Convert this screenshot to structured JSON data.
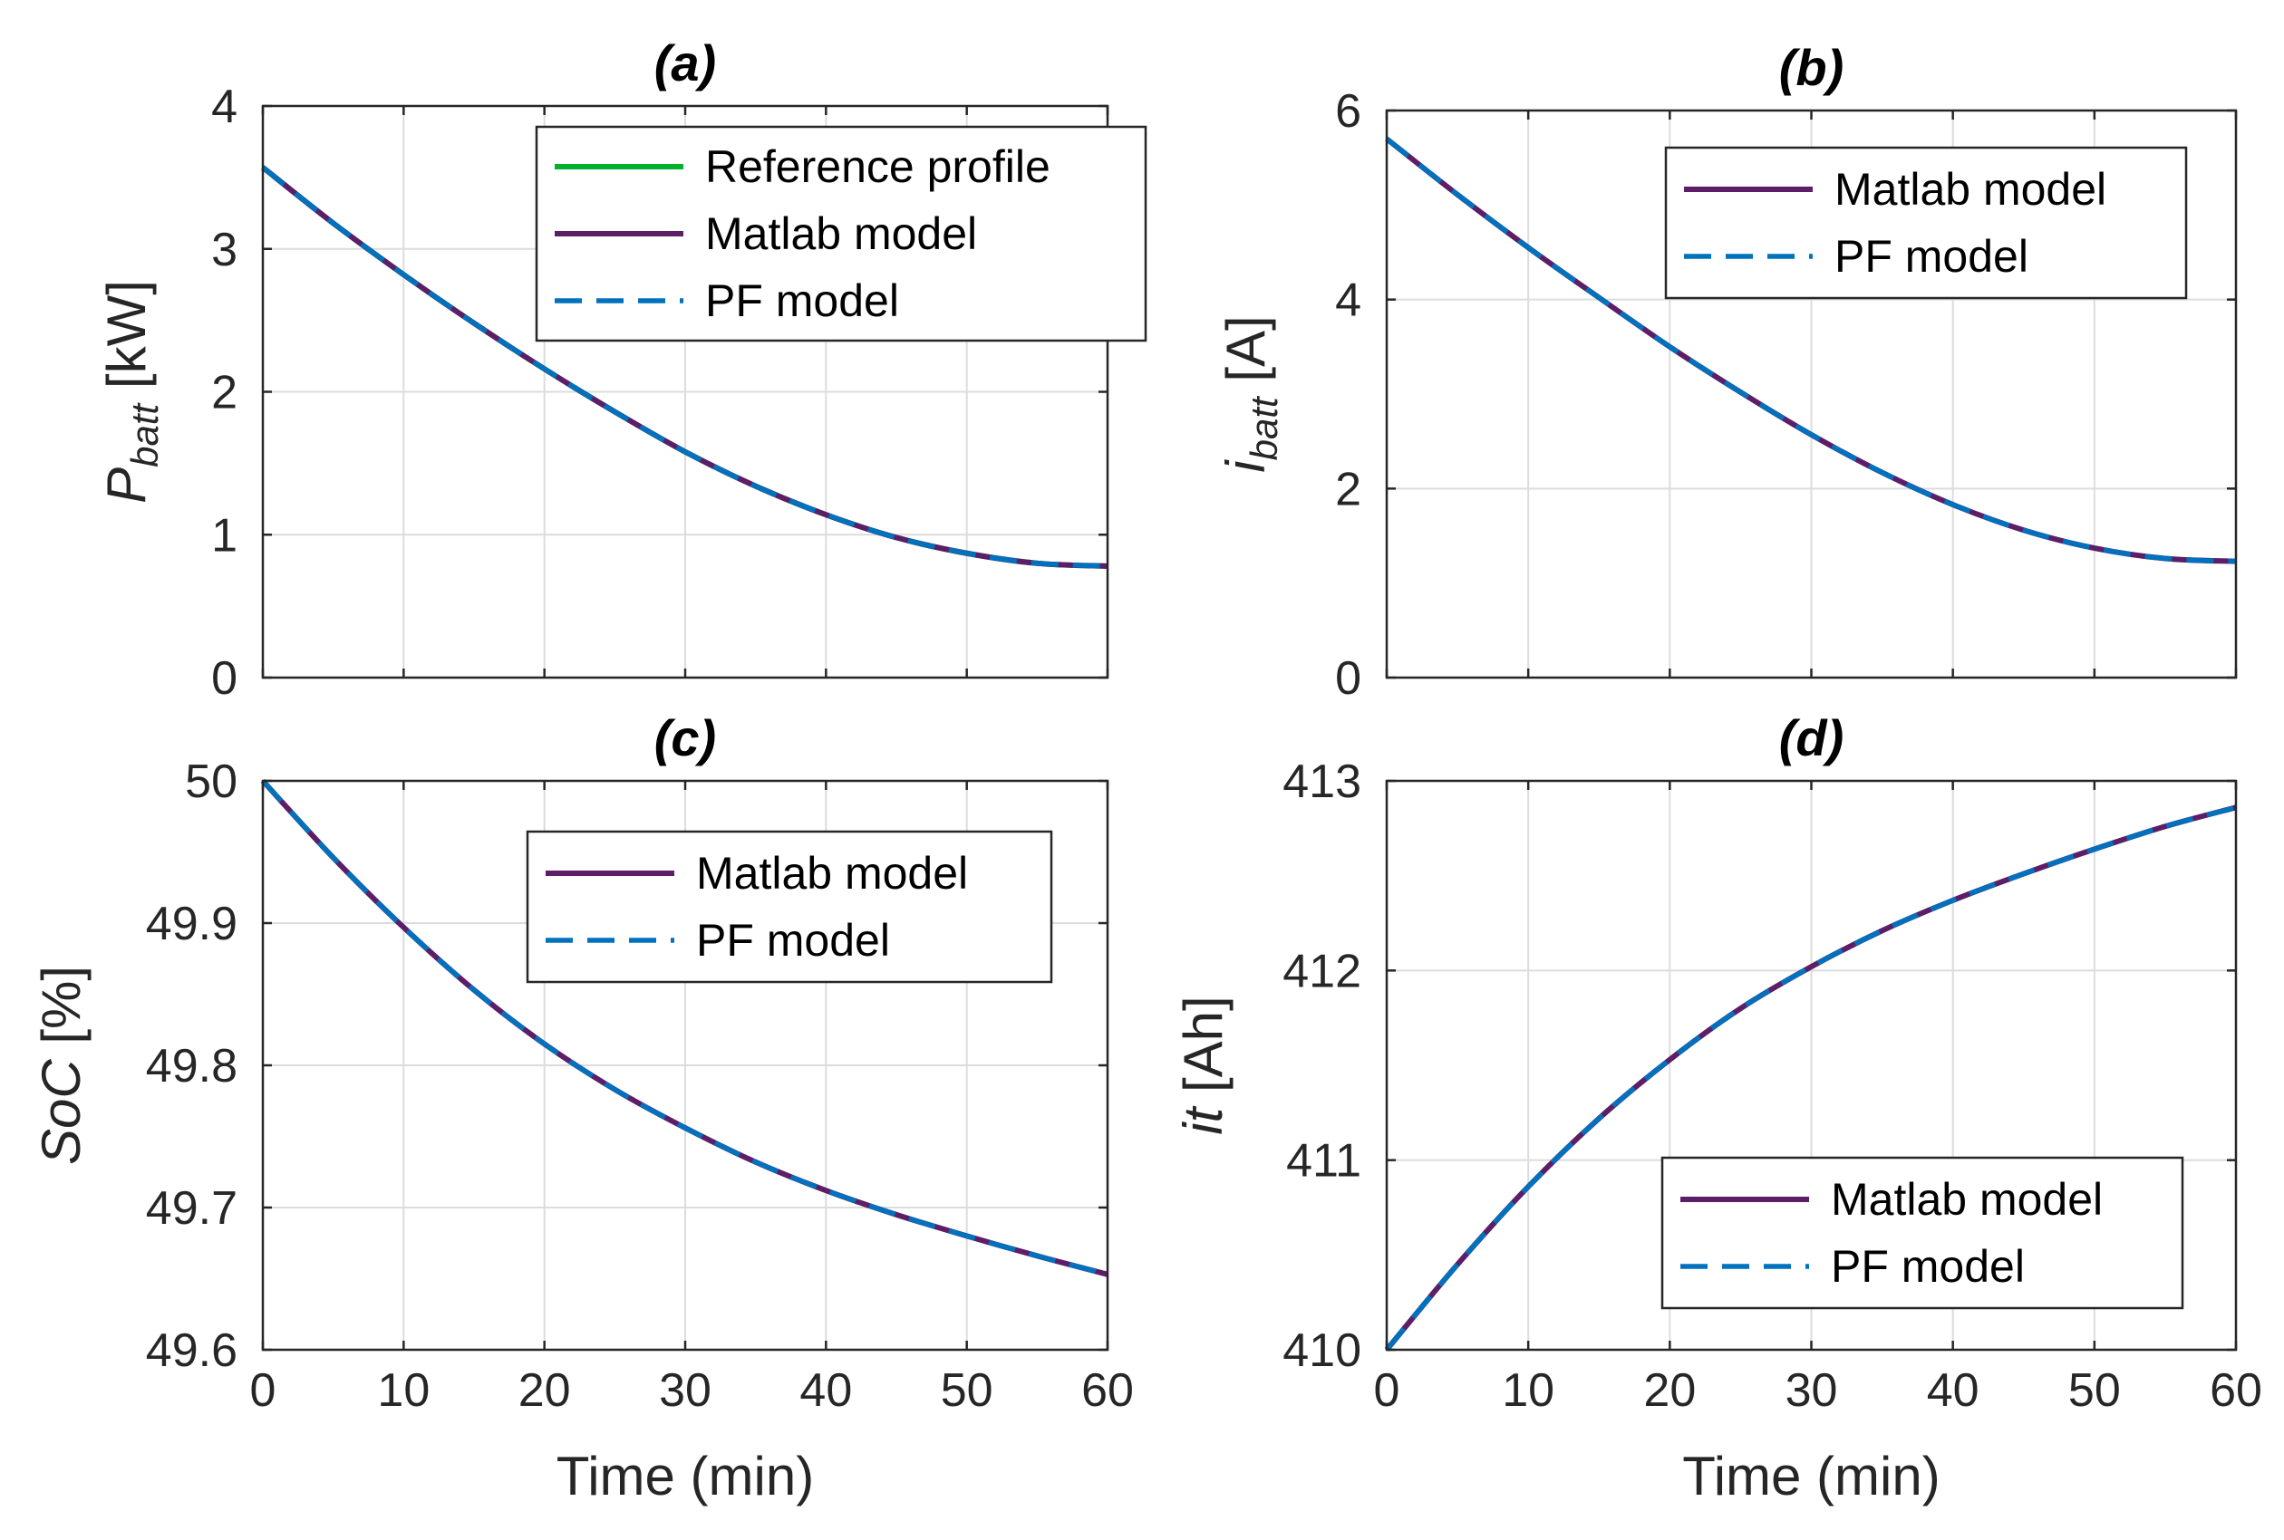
{
  "colors": {
    "reference": "#00b12c",
    "matlab": "#5b1e67",
    "pf": "#0072bd"
  },
  "xlabel": "Time (min)",
  "chart_data": [
    {
      "id": "a",
      "type": "line",
      "title": "(a)",
      "ylabel_main": "P",
      "ylabel_sub": "batt",
      "ylabel_unit": " [kW]",
      "ylabel_italic": true,
      "xlim": [
        0,
        60
      ],
      "xticks": [
        "0",
        "10",
        "20",
        "30",
        "40",
        "50",
        "60"
      ],
      "show_xticklabels": false,
      "ylim": [
        0,
        4
      ],
      "yticks": [
        "0",
        "1",
        "2",
        "3",
        "4"
      ],
      "grid": true,
      "legend": "top-right",
      "legend_entries": [
        "Reference profile",
        "Matlab model",
        "PF model"
      ],
      "x": [
        0,
        5,
        10,
        15,
        20,
        25,
        30,
        35,
        40,
        45,
        50,
        55,
        60
      ],
      "series": [
        {
          "name": "Reference profile",
          "style": "solid",
          "values": [
            3.57,
            3.18,
            2.82,
            2.48,
            2.16,
            1.86,
            1.58,
            1.34,
            1.14,
            0.98,
            0.87,
            0.8,
            0.78
          ]
        },
        {
          "name": "Matlab model",
          "style": "solid",
          "values": [
            3.57,
            3.18,
            2.82,
            2.48,
            2.16,
            1.86,
            1.58,
            1.34,
            1.14,
            0.98,
            0.87,
            0.8,
            0.78
          ]
        },
        {
          "name": "PF model",
          "style": "dashed",
          "values": [
            3.57,
            3.18,
            2.82,
            2.48,
            2.16,
            1.86,
            1.58,
            1.34,
            1.14,
            0.98,
            0.87,
            0.8,
            0.78
          ]
        }
      ]
    },
    {
      "id": "b",
      "type": "line",
      "title": "(b)",
      "ylabel_main": "i",
      "ylabel_sub": "batt",
      "ylabel_unit": " [A]",
      "ylabel_italic": true,
      "xlim": [
        0,
        60
      ],
      "xticks": [
        "0",
        "10",
        "20",
        "30",
        "40",
        "50",
        "60"
      ],
      "show_xticklabels": false,
      "ylim": [
        0,
        6
      ],
      "yticks": [
        "0",
        "2",
        "4",
        "6"
      ],
      "grid": true,
      "legend": "top-right",
      "legend_entries": [
        "Matlab model",
        "PF model"
      ],
      "x": [
        0,
        5,
        10,
        15,
        20,
        25,
        30,
        35,
        40,
        45,
        50,
        55,
        60
      ],
      "series": [
        {
          "name": "Matlab model",
          "style": "solid",
          "values": [
            5.7,
            5.11,
            4.55,
            4.02,
            3.5,
            3.02,
            2.57,
            2.17,
            1.83,
            1.56,
            1.37,
            1.26,
            1.23
          ]
        },
        {
          "name": "PF model",
          "style": "dashed",
          "values": [
            5.7,
            5.11,
            4.55,
            4.02,
            3.5,
            3.02,
            2.57,
            2.17,
            1.83,
            1.56,
            1.37,
            1.26,
            1.23
          ]
        }
      ]
    },
    {
      "id": "c",
      "type": "line",
      "title": "(c)",
      "ylabel_main": "SoC",
      "ylabel_sub": "",
      "ylabel_unit": " [%]",
      "ylabel_italic": true,
      "xlim": [
        0,
        60
      ],
      "xticks": [
        "0",
        "10",
        "20",
        "30",
        "40",
        "50",
        "60"
      ],
      "show_xticklabels": true,
      "ylim": [
        49.6,
        50
      ],
      "yticks": [
        "49.6",
        "49.7",
        "49.8",
        "49.9",
        "50"
      ],
      "grid": true,
      "legend": "top-right",
      "legend_entries": [
        "Matlab model",
        "PF model"
      ],
      "x": [
        0,
        5,
        10,
        15,
        20,
        25,
        30,
        35,
        40,
        45,
        50,
        55,
        60
      ],
      "series": [
        {
          "name": "Matlab model",
          "style": "solid",
          "values": [
            50.0,
            49.946,
            49.897,
            49.853,
            49.815,
            49.783,
            49.756,
            49.732,
            49.712,
            49.695,
            49.68,
            49.666,
            49.653
          ]
        },
        {
          "name": "PF model",
          "style": "dashed",
          "values": [
            50.0,
            49.946,
            49.897,
            49.853,
            49.815,
            49.783,
            49.756,
            49.732,
            49.712,
            49.695,
            49.68,
            49.666,
            49.653
          ]
        }
      ]
    },
    {
      "id": "d",
      "type": "line",
      "title": "(d)",
      "ylabel_main": "it",
      "ylabel_sub": "",
      "ylabel_unit": " [Ah]",
      "ylabel_italic": true,
      "xlim": [
        0,
        60
      ],
      "xticks": [
        "0",
        "10",
        "20",
        "30",
        "40",
        "50",
        "60"
      ],
      "show_xticklabels": true,
      "ylim": [
        410,
        413
      ],
      "yticks": [
        "410",
        "411",
        "412",
        "413"
      ],
      "grid": true,
      "legend": "bottom-right",
      "legend_entries": [
        "Matlab model",
        "PF model"
      ],
      "x": [
        0,
        5,
        10,
        15,
        20,
        25,
        30,
        35,
        40,
        45,
        50,
        55,
        60
      ],
      "series": [
        {
          "name": "Matlab model",
          "style": "solid",
          "values": [
            410.0,
            410.45,
            410.86,
            411.22,
            411.53,
            411.8,
            412.02,
            412.21,
            412.37,
            412.51,
            412.64,
            412.76,
            412.86
          ]
        },
        {
          "name": "PF model",
          "style": "dashed",
          "values": [
            410.0,
            410.45,
            410.86,
            411.22,
            411.53,
            411.8,
            412.02,
            412.21,
            412.37,
            412.51,
            412.64,
            412.76,
            412.86
          ]
        }
      ]
    }
  ]
}
